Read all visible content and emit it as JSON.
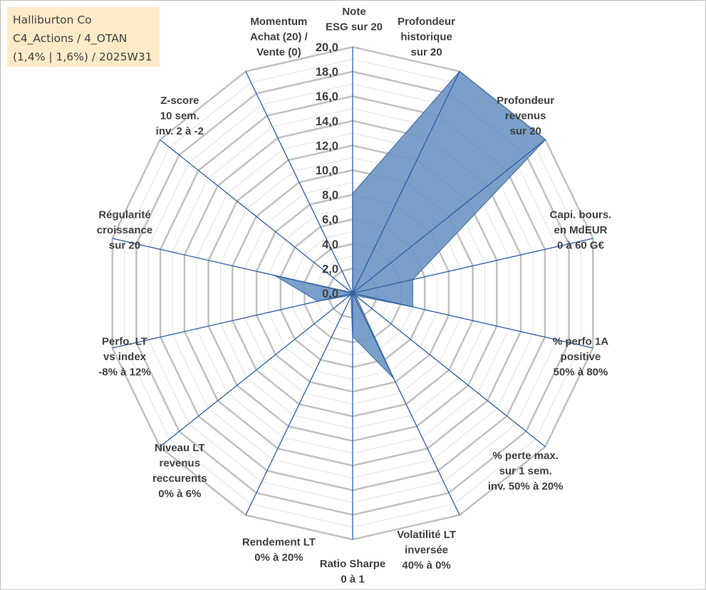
{
  "title_box": {
    "lines": [
      "Halliburton Co",
      "C4_Actions / 4_OTAN",
      "(1,4% | 1,6%) / 2025W31"
    ],
    "background": "#fdebc8"
  },
  "chart_data": {
    "type": "radar",
    "ticks": [
      "0,0",
      "2,0",
      "4,0",
      "6,0",
      "8,0",
      "10,0",
      "12,0",
      "14,0",
      "16,0",
      "18,0",
      "20,0"
    ],
    "rlim": [
      0,
      20
    ],
    "grid": true,
    "colors": {
      "fill": "#6f97c4",
      "stroke": "#4a74a8",
      "axis": "#2f5fa8",
      "grid": "#c0c0c0"
    },
    "axes": [
      {
        "label": [
          "Note",
          "ESG sur 20"
        ],
        "value": 8.1
      },
      {
        "label": [
          "Profondeur",
          "historique",
          "sur 20"
        ],
        "value": 20.0
      },
      {
        "label": [
          "Profondeur",
          "revenus",
          "sur 20"
        ],
        "value": 20.0
      },
      {
        "label": [
          "Capi. bours.",
          "en MdEUR",
          "0 à 60 G€"
        ],
        "value": 5.0
      },
      {
        "label": [
          "% perfo 1A",
          "positive",
          "50% à 80%"
        ],
        "value": 5.0
      },
      {
        "label": [
          "% perte max.",
          "sur 1 sem.",
          "inv. 50% à 20%"
        ],
        "value": 0.3
      },
      {
        "label": [
          "Volatilité LT",
          "inversée",
          "40% à 0%"
        ],
        "value": 7.7
      },
      {
        "label": [
          "Ratio Sharpe",
          "0 à 1"
        ],
        "value": 3.5
      },
      {
        "label": [
          "Rendement LT",
          "0% à 20%"
        ],
        "value": 0.3
      },
      {
        "label": [
          "Niveau LT",
          "revenus",
          "reccurents",
          "0% à 6%"
        ],
        "value": 0.3
      },
      {
        "label": [
          "Perfo. LT",
          "vs index",
          "-8% à 12%"
        ],
        "value": 2.9
      },
      {
        "label": [
          "Régularité",
          "croissance",
          "sur 20"
        ],
        "value": 6.5
      },
      {
        "label": [
          "Z-score",
          "10 sem.",
          "inv. 2 à -2"
        ],
        "value": 0.1
      },
      {
        "label": [
          "Momentum",
          "Achat (20) /",
          "Vente (0)"
        ],
        "value": 0.0
      }
    ]
  }
}
